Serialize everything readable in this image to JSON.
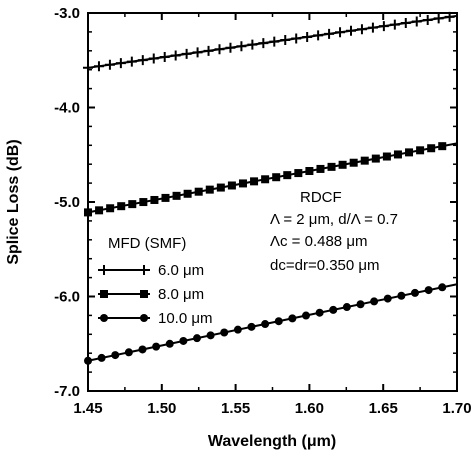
{
  "chart_data": {
    "type": "line",
    "xlabel": "Wavelength (μm)",
    "ylabel": "Splice Loss (dB)",
    "xlim": [
      1.45,
      1.7
    ],
    "ylim": [
      -7.0,
      -3.0
    ],
    "xticks": [
      "1.45",
      "1.50",
      "1.55",
      "1.60",
      "1.65",
      "1.70"
    ],
    "yticks": [
      "-3.0",
      "-4.0",
      "-5.0",
      "-6.0",
      "-7.0"
    ],
    "grid": false,
    "legend_title": "MFD (SMF)",
    "legend_position": "bottom-left",
    "annotation": {
      "line1": "RDCF",
      "line2": "Λ = 2 μm, d/Λ = 0.7",
      "line3": "Λc = 0.488 μm",
      "line4": "dc=dr=0.350 μm"
    },
    "series": [
      {
        "name": "6.0 μm",
        "marker": "plus",
        "x": [
          1.45,
          1.7
        ],
        "y": [
          -3.58,
          -3.03
        ],
        "marker_x_range": [
          1.45,
          1.695
        ],
        "marker_count": 34
      },
      {
        "name": "8.0 μm",
        "marker": "square",
        "x": [
          1.45,
          1.7
        ],
        "y": [
          -5.11,
          -4.38
        ],
        "marker_x_range": [
          1.45,
          1.69
        ],
        "marker_count": 33
      },
      {
        "name": "10.0 μm",
        "marker": "circle",
        "x": [
          1.45,
          1.7
        ],
        "y": [
          -6.68,
          -5.87
        ],
        "marker_x_range": [
          1.45,
          1.69
        ],
        "marker_count": 27
      }
    ]
  }
}
